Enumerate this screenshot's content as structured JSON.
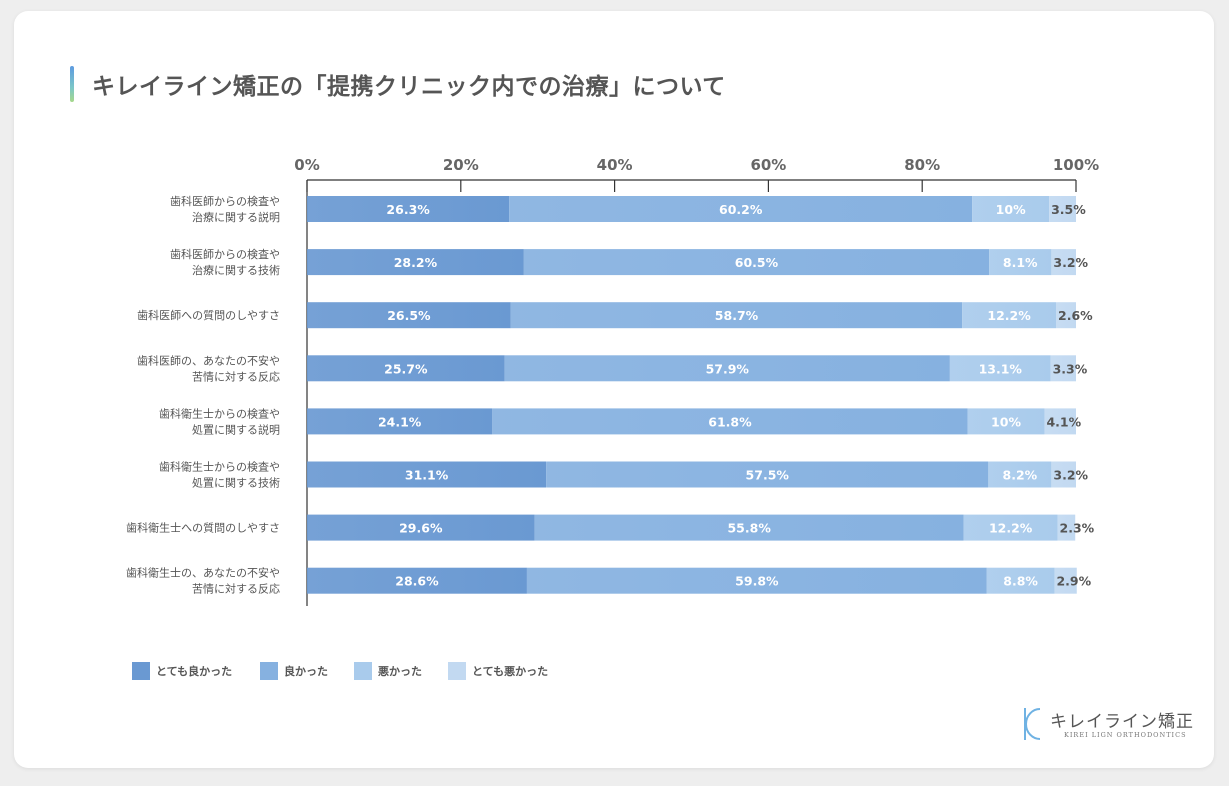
{
  "title": "キレイライン矯正の「提携クリニック内での治療」について",
  "colors": {
    "very_good": "#6a99d2",
    "good": "#86b1e0",
    "bad": "#a9cbec",
    "very_bad": "#c2d9f1",
    "axis": "#333333",
    "tick_text": "#666666"
  },
  "chart_data": {
    "type": "bar",
    "orientation": "horizontal",
    "stacked": true,
    "title": "",
    "xlabel": "",
    "ylabel": "",
    "xlim": [
      0,
      100
    ],
    "x_ticks": [
      "0%",
      "20%",
      "40%",
      "60%",
      "80%",
      "100%"
    ],
    "categories": [
      "歯科医師からの検査や\n治療に関する説明",
      "歯科医師からの検査や\n治療に関する技術",
      "歯科医師への質問のしやすさ",
      "歯科医師の、あなたの不安や\n苦情に対する反応",
      "歯科衛生士からの検査や\n処置に関する説明",
      "歯科衛生士からの検査や\n処置に関する技術",
      "歯科衛生士への質問のしやすさ",
      "歯科衛生士の、あなたの不安や\n苦情に対する反応"
    ],
    "series": [
      {
        "name": "とても良かった",
        "values": [
          26.3,
          28.2,
          26.5,
          25.7,
          24.1,
          31.1,
          29.6,
          28.6
        ],
        "labels": [
          "26.3%",
          "28.2%",
          "26.5%",
          "25.7%",
          "24.1%",
          "31.1%",
          "29.6%",
          "28.6%"
        ]
      },
      {
        "name": "良かった",
        "values": [
          60.2,
          60.5,
          58.7,
          57.9,
          61.8,
          57.5,
          55.8,
          59.8
        ],
        "labels": [
          "60.2%",
          "60.5%",
          "58.7%",
          "57.9%",
          "61.8%",
          "57.5%",
          "55.8%",
          "59.8%"
        ]
      },
      {
        "name": "悪かった",
        "values": [
          10,
          8.1,
          12.2,
          13.1,
          10,
          8.2,
          12.2,
          8.8
        ],
        "labels": [
          "10%",
          "8.1%",
          "12.2%",
          "13.1%",
          "10%",
          "8.2%",
          "12.2%",
          "8.8%"
        ]
      },
      {
        "name": "とても悪かった",
        "values": [
          3.5,
          3.2,
          2.6,
          3.3,
          4.1,
          3.2,
          2.3,
          2.9
        ],
        "labels": [
          "3.5%",
          "3.2%",
          "2.6%",
          "3.3%",
          "4.1%",
          "3.2%",
          "2.3%",
          "2.9%"
        ]
      }
    ],
    "legend_position": "bottom-left",
    "grid": false
  },
  "logo": {
    "name": "キレイライン矯正",
    "sub": "KIREI LIGN ORTHODONTICS"
  }
}
